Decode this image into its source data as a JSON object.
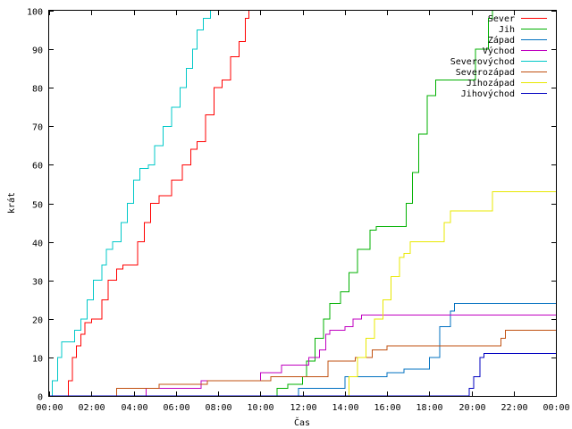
{
  "chart_data": {
    "type": "line",
    "title": "",
    "xlabel": "Čas",
    "ylabel": "krát",
    "xlim": [
      0,
      24
    ],
    "ylim": [
      0,
      100
    ],
    "xticks": [
      "00:00",
      "02:00",
      "04:00",
      "06:00",
      "08:00",
      "10:00",
      "12:00",
      "14:00",
      "16:00",
      "18:00",
      "20:00",
      "22:00",
      "00:00"
    ],
    "yticks": [
      0,
      10,
      20,
      30,
      40,
      50,
      60,
      70,
      80,
      90,
      100
    ],
    "grid": false,
    "legend_position": "top-right",
    "step": true,
    "series": [
      {
        "name": "Sever",
        "color": "#ff0000",
        "points": [
          [
            0.0,
            0
          ],
          [
            0.8,
            0
          ],
          [
            0.9,
            4
          ],
          [
            1.1,
            10
          ],
          [
            1.3,
            13
          ],
          [
            1.5,
            16
          ],
          [
            1.7,
            19
          ],
          [
            2.0,
            20
          ],
          [
            2.5,
            25
          ],
          [
            2.8,
            30
          ],
          [
            3.2,
            33
          ],
          [
            3.5,
            34
          ],
          [
            4.0,
            34
          ],
          [
            4.2,
            40
          ],
          [
            4.5,
            45
          ],
          [
            4.8,
            50
          ],
          [
            5.2,
            52
          ],
          [
            5.8,
            56
          ],
          [
            6.3,
            60
          ],
          [
            6.7,
            64
          ],
          [
            7.0,
            66
          ],
          [
            7.4,
            73
          ],
          [
            7.8,
            80
          ],
          [
            8.2,
            82
          ],
          [
            8.6,
            88
          ],
          [
            9.0,
            92
          ],
          [
            9.3,
            98
          ],
          [
            9.45,
            100
          ]
        ]
      },
      {
        "name": "Jih",
        "color": "#00b000",
        "points": [
          [
            0.0,
            0
          ],
          [
            10.6,
            0
          ],
          [
            10.8,
            2
          ],
          [
            11.3,
            3
          ],
          [
            12.0,
            5
          ],
          [
            12.2,
            9
          ],
          [
            12.6,
            15
          ],
          [
            13.0,
            20
          ],
          [
            13.3,
            24
          ],
          [
            13.8,
            27
          ],
          [
            14.2,
            32
          ],
          [
            14.6,
            38
          ],
          [
            15.2,
            43
          ],
          [
            15.5,
            44
          ],
          [
            16.5,
            44
          ],
          [
            16.9,
            50
          ],
          [
            17.2,
            58
          ],
          [
            17.5,
            68
          ],
          [
            17.9,
            78
          ],
          [
            18.3,
            82
          ],
          [
            19.8,
            82
          ],
          [
            20.2,
            90
          ],
          [
            20.8,
            98
          ],
          [
            21.0,
            100
          ]
        ]
      },
      {
        "name": "Západ",
        "color": "#0070c0",
        "points": [
          [
            0.0,
            0
          ],
          [
            11.8,
            0
          ],
          [
            11.8,
            2
          ],
          [
            13.8,
            2
          ],
          [
            14.0,
            5
          ],
          [
            15.8,
            5
          ],
          [
            16.0,
            6
          ],
          [
            16.8,
            7
          ],
          [
            17.8,
            7
          ],
          [
            18.0,
            10
          ],
          [
            18.5,
            18
          ],
          [
            19.0,
            22
          ],
          [
            19.2,
            24
          ],
          [
            24.0,
            24
          ]
        ]
      },
      {
        "name": "Východ",
        "color": "#c000c0",
        "points": [
          [
            0.0,
            0
          ],
          [
            4.5,
            0
          ],
          [
            4.6,
            2
          ],
          [
            7.0,
            2
          ],
          [
            7.2,
            4
          ],
          [
            9.8,
            4
          ],
          [
            10.0,
            6
          ],
          [
            10.8,
            6
          ],
          [
            11.0,
            8
          ],
          [
            12.0,
            8
          ],
          [
            12.3,
            10
          ],
          [
            12.8,
            12
          ],
          [
            13.1,
            16
          ],
          [
            13.3,
            17
          ],
          [
            14.0,
            18
          ],
          [
            14.4,
            20
          ],
          [
            14.8,
            21
          ],
          [
            24.0,
            21
          ]
        ]
      },
      {
        "name": "Severovýchod",
        "color": "#00c8c8",
        "points": [
          [
            0.0,
            0
          ],
          [
            0.15,
            4
          ],
          [
            0.4,
            10
          ],
          [
            0.6,
            14
          ],
          [
            1.0,
            14
          ],
          [
            1.2,
            17
          ],
          [
            1.5,
            20
          ],
          [
            1.8,
            25
          ],
          [
            2.1,
            30
          ],
          [
            2.5,
            34
          ],
          [
            2.7,
            38
          ],
          [
            3.0,
            40
          ],
          [
            3.4,
            45
          ],
          [
            3.7,
            50
          ],
          [
            4.0,
            56
          ],
          [
            4.3,
            59
          ],
          [
            4.7,
            60
          ],
          [
            5.0,
            65
          ],
          [
            5.4,
            70
          ],
          [
            5.8,
            75
          ],
          [
            6.2,
            80
          ],
          [
            6.5,
            85
          ],
          [
            6.8,
            90
          ],
          [
            7.0,
            95
          ],
          [
            7.3,
            98
          ],
          [
            7.6,
            98
          ],
          [
            7.65,
            100
          ]
        ]
      },
      {
        "name": "Severozápad",
        "color": "#c05010",
        "points": [
          [
            0.0,
            0
          ],
          [
            3.2,
            0
          ],
          [
            3.2,
            2
          ],
          [
            5.0,
            2
          ],
          [
            5.2,
            3
          ],
          [
            7.5,
            3
          ],
          [
            7.5,
            4
          ],
          [
            10.5,
            4
          ],
          [
            10.5,
            5
          ],
          [
            13.2,
            5
          ],
          [
            13.2,
            9
          ],
          [
            14.5,
            9
          ],
          [
            14.5,
            10
          ],
          [
            15.3,
            10
          ],
          [
            15.3,
            12
          ],
          [
            16.0,
            12
          ],
          [
            16.0,
            13
          ],
          [
            21.2,
            13
          ],
          [
            21.4,
            15
          ],
          [
            21.6,
            17
          ],
          [
            24.0,
            17
          ]
        ]
      },
      {
        "name": "Jihozápad",
        "color": "#e8e800",
        "points": [
          [
            0.0,
            0
          ],
          [
            13.9,
            0
          ],
          [
            14.2,
            5
          ],
          [
            14.6,
            10
          ],
          [
            15.0,
            15
          ],
          [
            15.4,
            20
          ],
          [
            15.8,
            25
          ],
          [
            16.2,
            31
          ],
          [
            16.6,
            36
          ],
          [
            16.8,
            37
          ],
          [
            17.1,
            40
          ],
          [
            18.4,
            40
          ],
          [
            18.7,
            45
          ],
          [
            19.0,
            48
          ],
          [
            20.8,
            48
          ],
          [
            21.0,
            53
          ],
          [
            24.0,
            53
          ]
        ]
      },
      {
        "name": "Jihovýchod",
        "color": "#0000c0",
        "points": [
          [
            0.0,
            0
          ],
          [
            19.8,
            0
          ],
          [
            19.9,
            2
          ],
          [
            20.1,
            5
          ],
          [
            20.4,
            10
          ],
          [
            20.6,
            11
          ],
          [
            24.0,
            11
          ]
        ]
      }
    ]
  }
}
